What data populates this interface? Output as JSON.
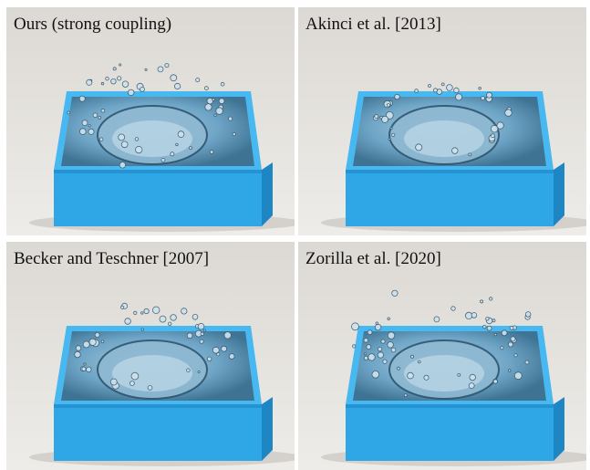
{
  "panels": [
    {
      "label": "Ours (strong coupling)",
      "splash_seed": 11,
      "splash_level": 0.75
    },
    {
      "label": "Akinci et al. [2013]",
      "splash_seed": 23,
      "splash_level": 0.35
    },
    {
      "label": "Becker and Teschner [2007]",
      "splash_seed": 37,
      "splash_level": 0.6
    },
    {
      "label": "Zorilla et al. [2020]",
      "splash_seed": 53,
      "splash_level": 0.9
    }
  ],
  "colors": {
    "background_top": "#dcd9d4",
    "background_bottom": "#eeece8",
    "box_side": "#2fa7e6",
    "box_rim": "#48b8f0",
    "box_shadow": "#1f86c4",
    "water": "#6fa5c6",
    "water_dark": "#3f7394",
    "droplet": "#cfe2ec"
  }
}
